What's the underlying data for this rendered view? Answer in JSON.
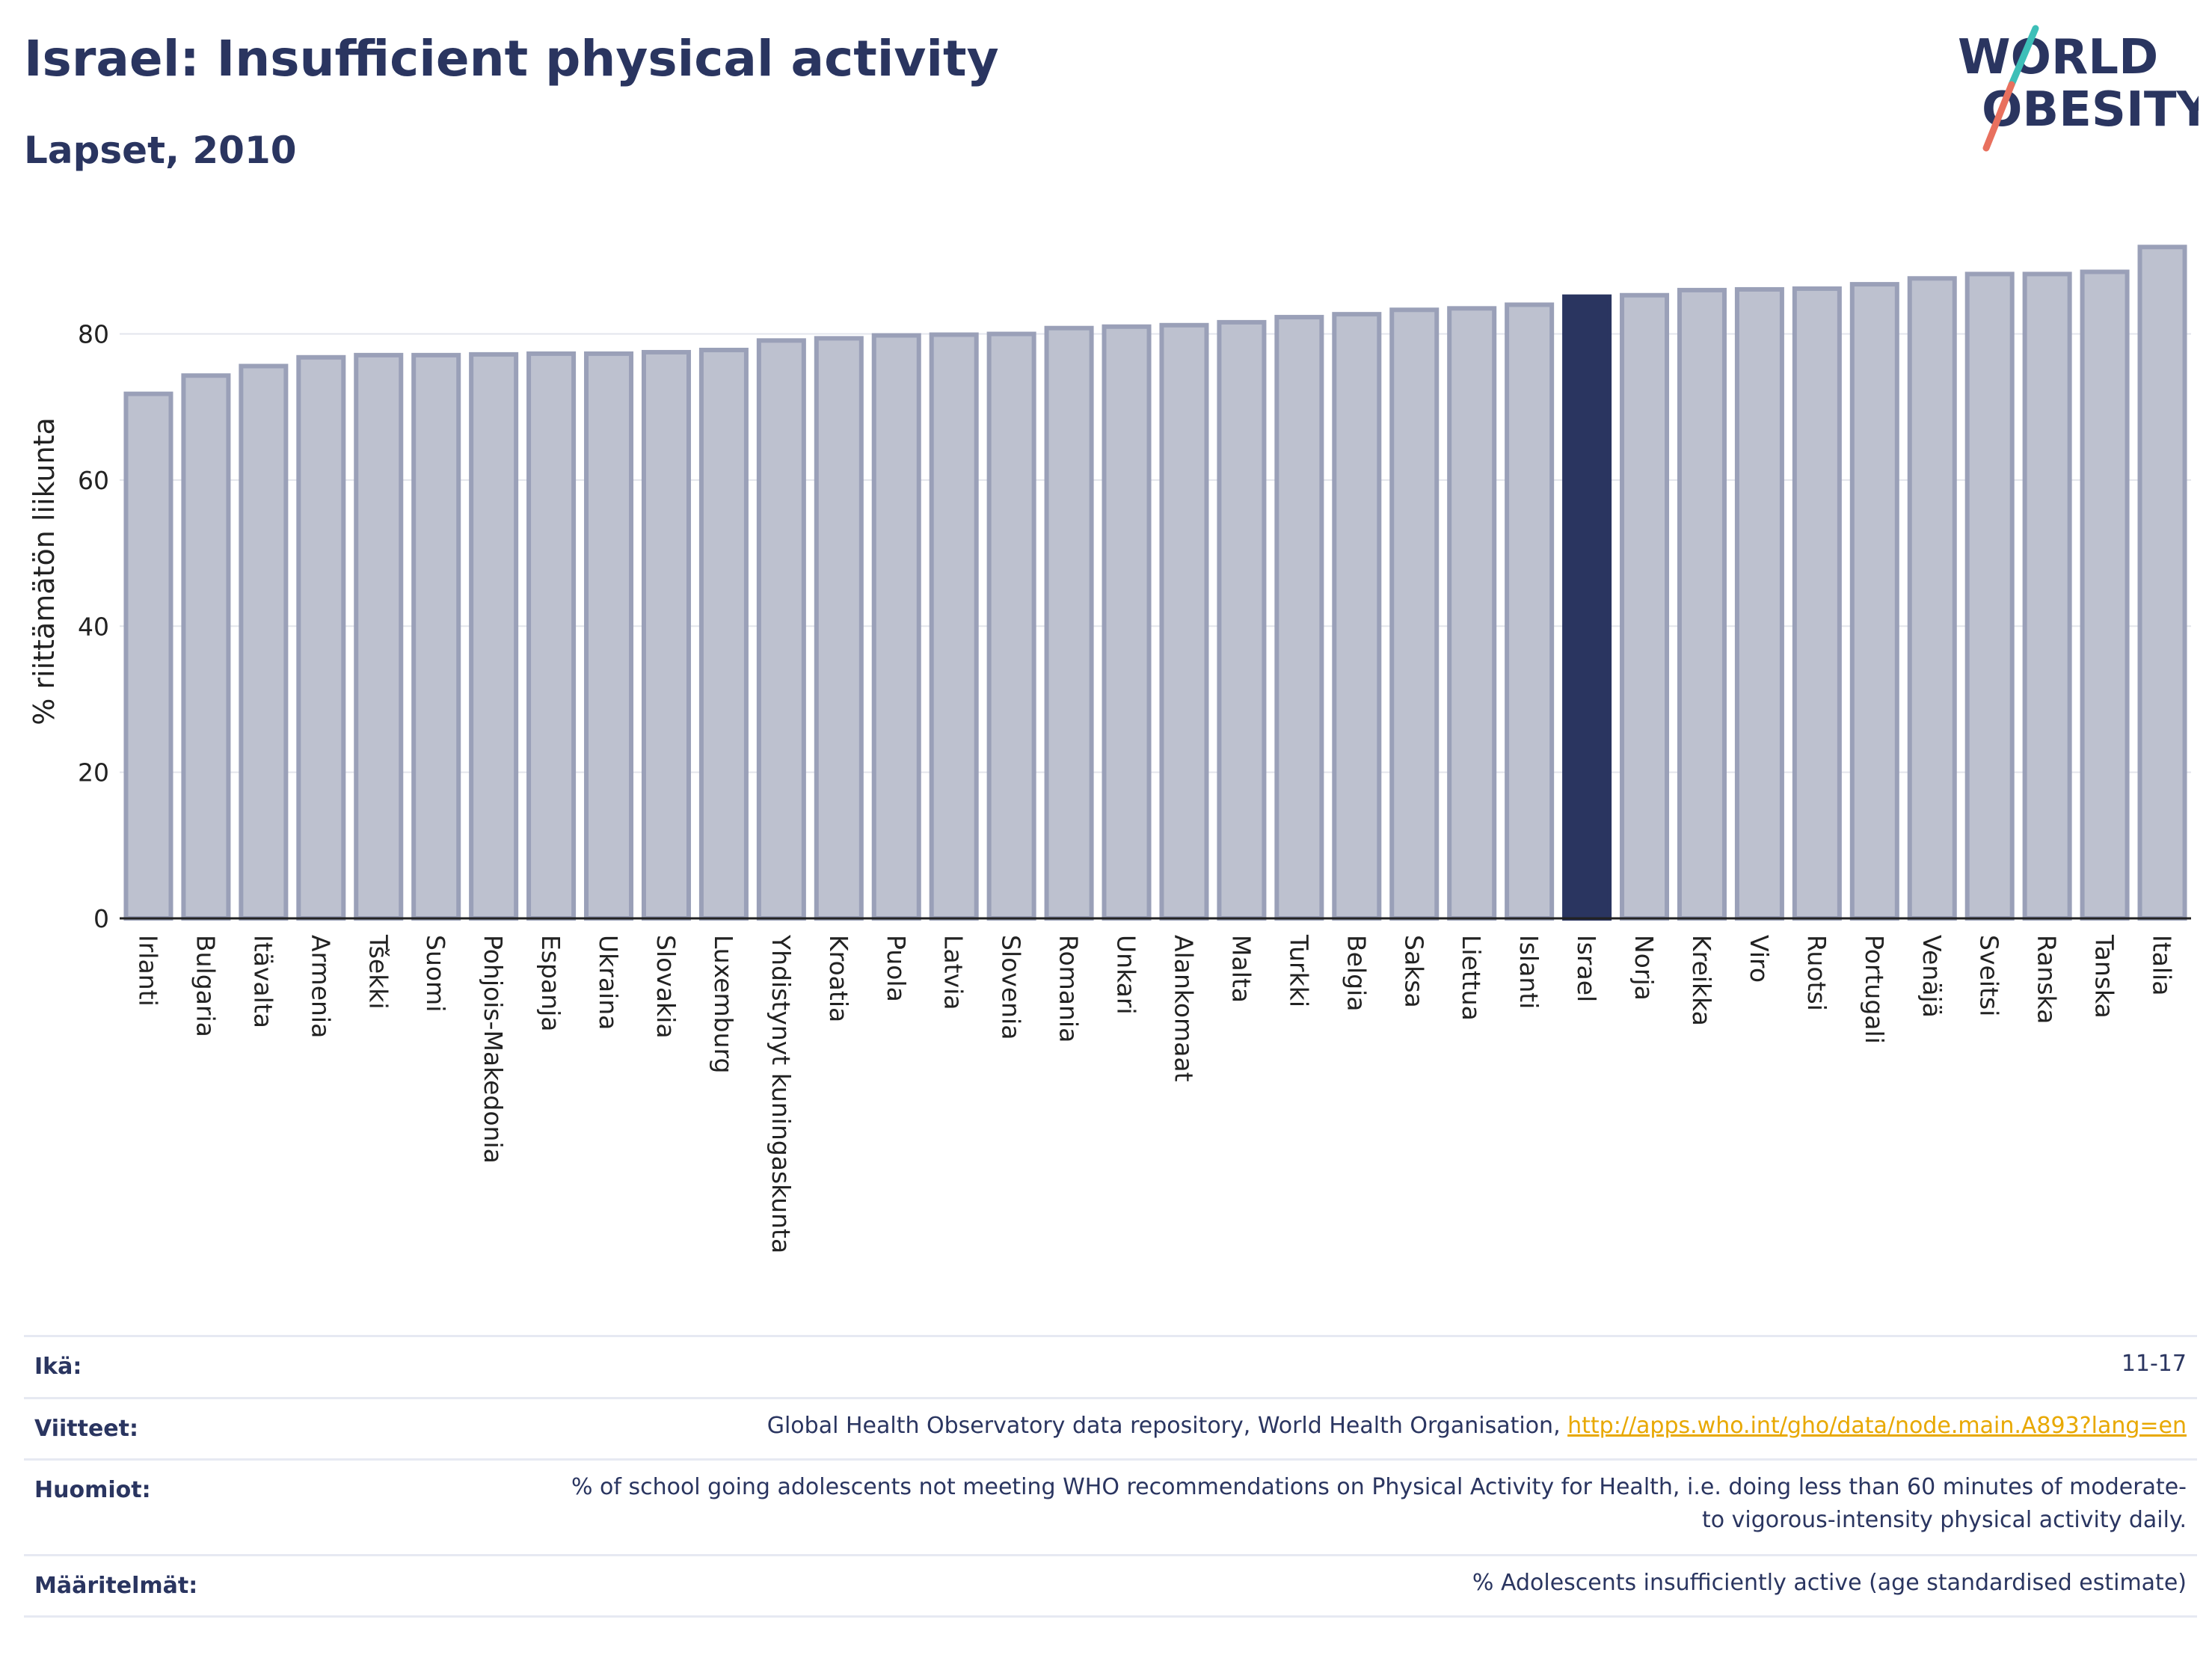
{
  "header": {
    "title": "Israel: Insufficient physical activity",
    "subtitle": "Lapset, 2010",
    "logo_line1": "WORLD",
    "logo_line2": "OBESITY"
  },
  "colors": {
    "bar_fill": "#bdc1cf",
    "bar_stroke": "#9aa0b8",
    "highlight": "#2a3560",
    "grid": "#e3e5ec",
    "axis": "#222222",
    "logo_teal": "#3dbfb8",
    "logo_red": "#e8705e",
    "link": "#e8a800"
  },
  "chart_data": {
    "type": "bar",
    "ylabel": "% riittämätön liikunta",
    "ylim": [
      0,
      95
    ],
    "yticks": [
      0,
      20,
      40,
      60,
      80
    ],
    "grid": true,
    "highlight": "Israel",
    "categories": [
      "Irlanti",
      "Bulgaria",
      "Itävalta",
      "Armenia",
      "Tšekki",
      "Suomi",
      "Pohjois-Makedonia",
      "Espanja",
      "Ukraina",
      "Slovakia",
      "Luxemburg",
      "Yhdistynyt kuningaskunta",
      "Kroatia",
      "Puola",
      "Latvia",
      "Slovenia",
      "Romania",
      "Unkari",
      "Alankomaat",
      "Malta",
      "Turkki",
      "Belgia",
      "Saksa",
      "Liettua",
      "Islanti",
      "Israel",
      "Norja",
      "Kreikka",
      "Viro",
      "Ruotsi",
      "Portugali",
      "Venäjä",
      "Sveitsi",
      "Ranska",
      "Tanska",
      "Italia"
    ],
    "values": [
      71.8,
      74.3,
      75.6,
      76.8,
      77.1,
      77.1,
      77.2,
      77.3,
      77.3,
      77.5,
      77.8,
      79.1,
      79.4,
      79.8,
      79.9,
      80.0,
      80.8,
      81.0,
      81.2,
      81.6,
      82.3,
      82.7,
      83.3,
      83.5,
      84.0,
      85.1,
      85.3,
      86.0,
      86.1,
      86.2,
      86.8,
      87.6,
      88.2,
      88.2,
      88.5,
      91.9
    ]
  },
  "meta": {
    "rows": [
      {
        "key": "Ikä:",
        "value": "11-17",
        "link": ""
      },
      {
        "key": "Viitteet:",
        "value": "Global Health Observatory data repository, World Health Organisation, ",
        "link": "http://apps.who.int/gho/data/node.main.A893?lang=en"
      },
      {
        "key": "Huomiot:",
        "value": "% of school going adolescents not meeting WHO recommendations on Physical Activity for Health, i.e. doing less than 60 minutes of moderate- to vigorous-intensity physical activity daily.",
        "link": ""
      },
      {
        "key": "Määritelmät:",
        "value": "% Adolescents insufficiently active (age standardised estimate)",
        "link": ""
      }
    ]
  }
}
